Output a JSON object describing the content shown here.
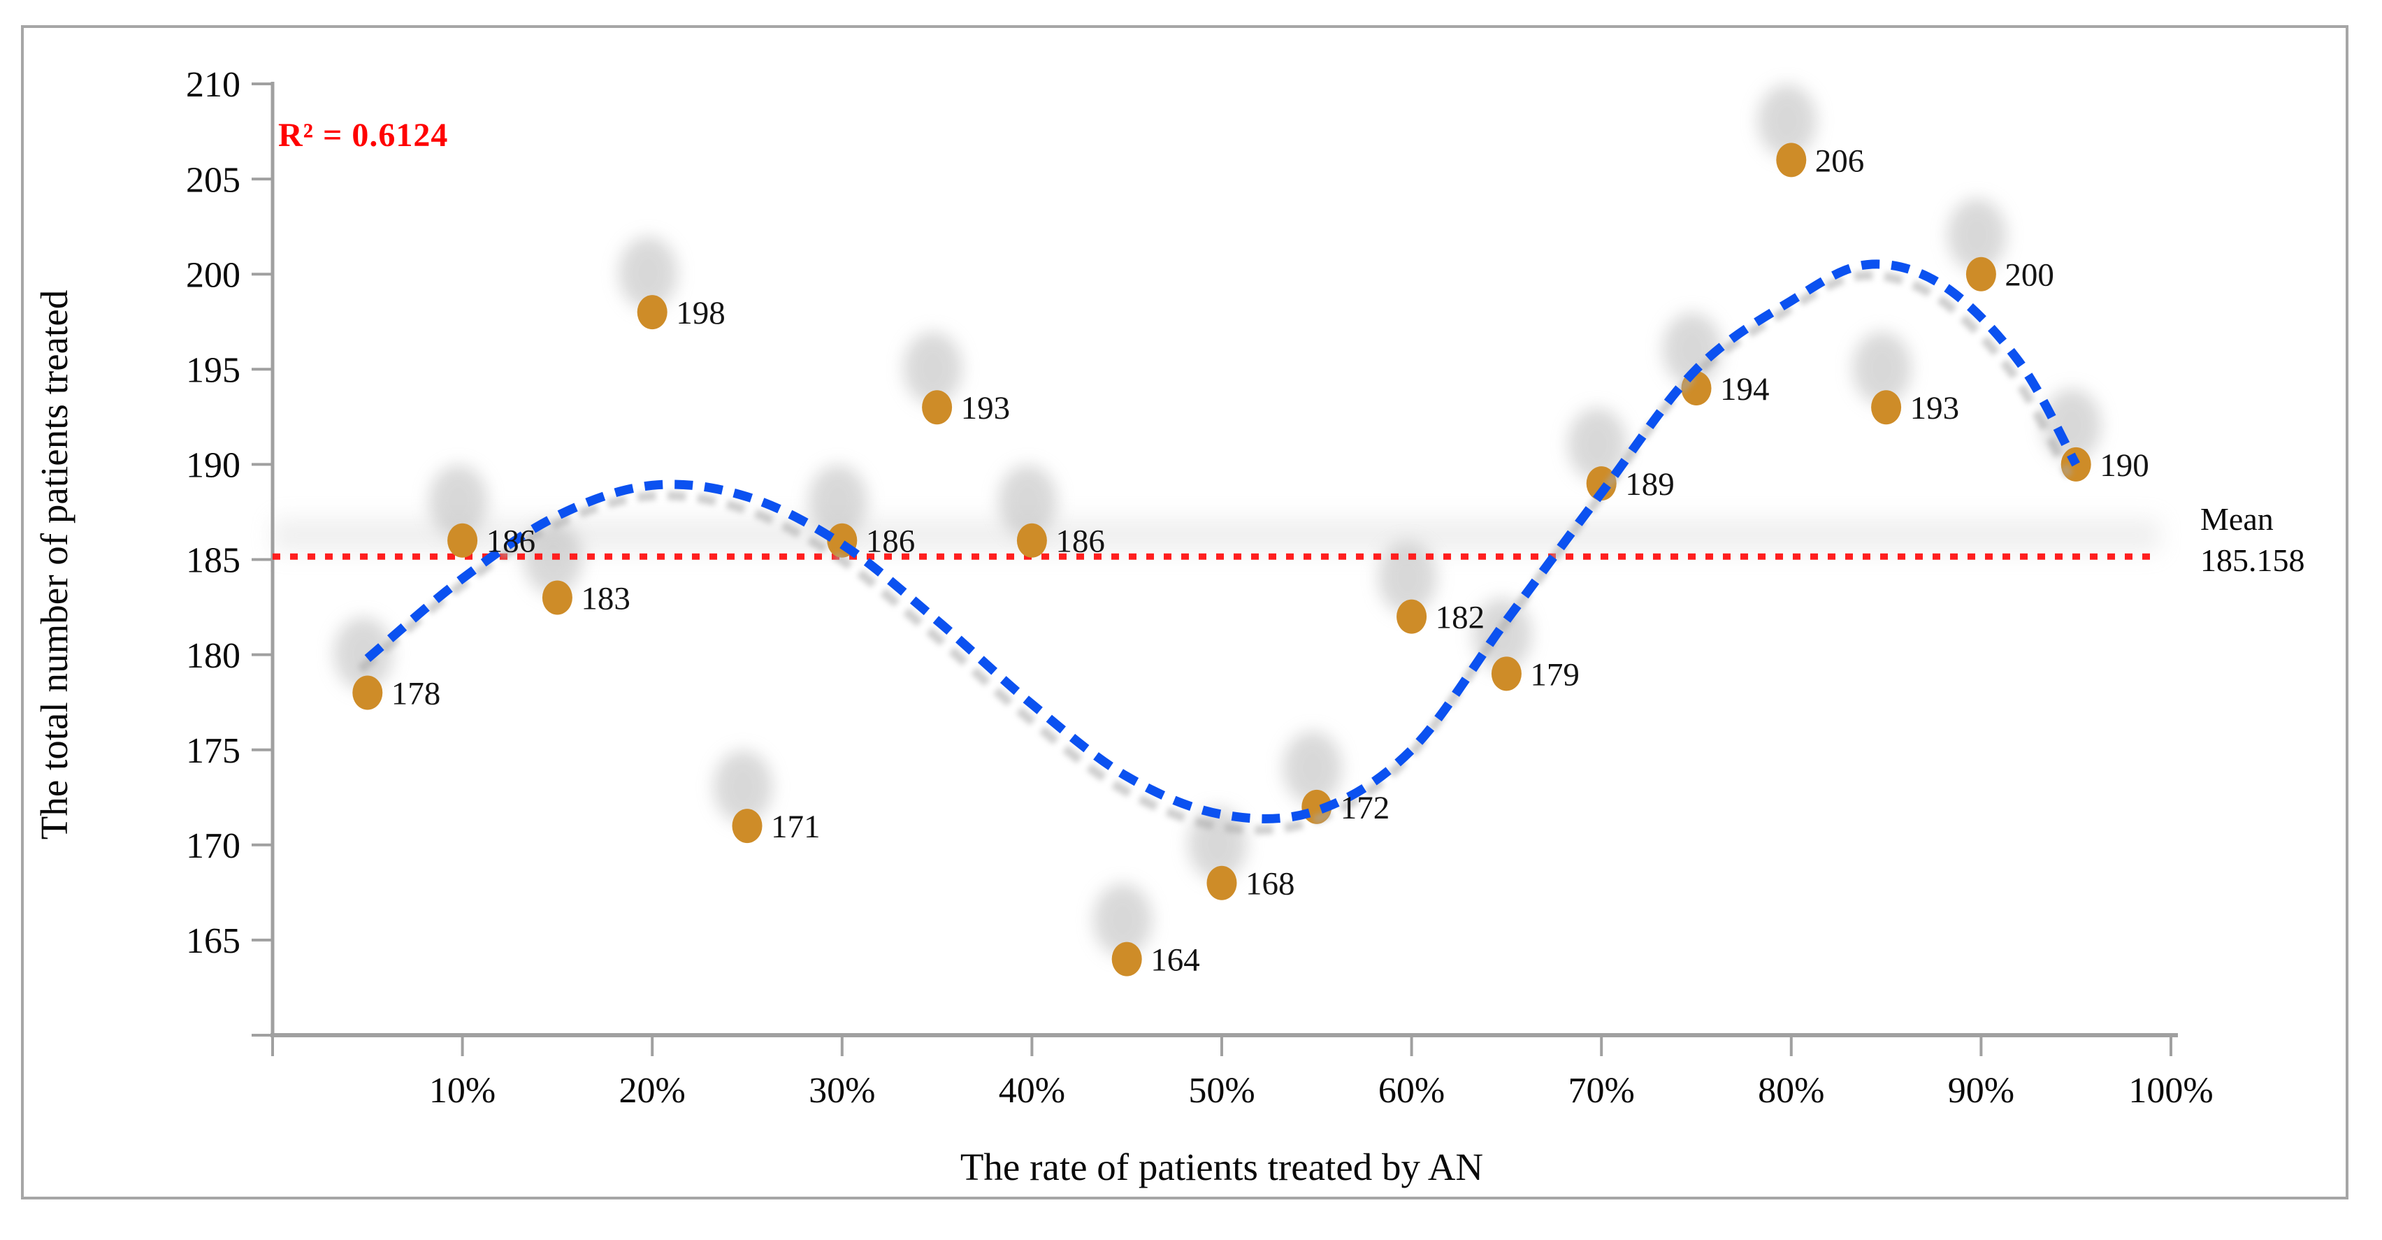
{
  "chart_data": {
    "type": "scatter",
    "title": "",
    "xlabel": "The rate of patients treated by AN",
    "ylabel": "The total number of patients treated",
    "r2_label": "R² = 0.6124",
    "mean": {
      "value": 185.158,
      "line1": "Mean",
      "line2": "185.158"
    },
    "x_range": [
      0,
      100
    ],
    "y_range": [
      160,
      210
    ],
    "legend": "none",
    "grid": "off",
    "x_ticks": [
      {
        "p": 0,
        "label": ""
      },
      {
        "p": 10,
        "label": "10%"
      },
      {
        "p": 20,
        "label": "20%"
      },
      {
        "p": 30,
        "label": "30%"
      },
      {
        "p": 40,
        "label": "40%"
      },
      {
        "p": 50,
        "label": "50%"
      },
      {
        "p": 60,
        "label": "60%"
      },
      {
        "p": 70,
        "label": "70%"
      },
      {
        "p": 80,
        "label": "80%"
      },
      {
        "p": 90,
        "label": "90%"
      },
      {
        "p": 100,
        "label": "100%"
      }
    ],
    "y_ticks": [
      {
        "v": 160,
        "label": ""
      },
      {
        "v": 165,
        "label": "165"
      },
      {
        "v": 170,
        "label": "170"
      },
      {
        "v": 175,
        "label": "175"
      },
      {
        "v": 180,
        "label": "180"
      },
      {
        "v": 185,
        "label": "185"
      },
      {
        "v": 190,
        "label": "190"
      },
      {
        "v": 195,
        "label": "195"
      },
      {
        "v": 200,
        "label": "200"
      },
      {
        "v": 205,
        "label": "205"
      },
      {
        "v": 210,
        "label": "210"
      }
    ],
    "points": [
      {
        "x": 5,
        "y": 178,
        "label": "178"
      },
      {
        "x": 10,
        "y": 186,
        "label": "186"
      },
      {
        "x": 15,
        "y": 183,
        "label": "183"
      },
      {
        "x": 20,
        "y": 198,
        "label": "198"
      },
      {
        "x": 25,
        "y": 171,
        "label": "171"
      },
      {
        "x": 30,
        "y": 186,
        "label": "186"
      },
      {
        "x": 35,
        "y": 193,
        "label": "193"
      },
      {
        "x": 40,
        "y": 186,
        "label": "186"
      },
      {
        "x": 45,
        "y": 164,
        "label": "164"
      },
      {
        "x": 50,
        "y": 168,
        "label": "168"
      },
      {
        "x": 55,
        "y": 172,
        "label": "172"
      },
      {
        "x": 60,
        "y": 182,
        "label": "182"
      },
      {
        "x": 65,
        "y": 179,
        "label": "179"
      },
      {
        "x": 70,
        "y": 189,
        "label": "189"
      },
      {
        "x": 75,
        "y": 194,
        "label": "194"
      },
      {
        "x": 80,
        "y": 206,
        "label": "206"
      },
      {
        "x": 85,
        "y": 193,
        "label": "193"
      },
      {
        "x": 90,
        "y": 200,
        "label": "200"
      },
      {
        "x": 95,
        "y": 190,
        "label": "190"
      }
    ],
    "trend": {
      "style": "dashed",
      "control_points": [
        [
          5,
          179.8
        ],
        [
          10,
          184.0
        ],
        [
          15,
          187.3
        ],
        [
          20,
          188.9
        ],
        [
          25,
          188.3
        ],
        [
          30,
          185.8
        ],
        [
          35,
          181.8
        ],
        [
          40,
          177.4
        ],
        [
          45,
          173.6
        ],
        [
          50,
          171.6
        ],
        [
          55,
          171.8
        ],
        [
          60,
          175.0
        ],
        [
          65,
          181.8
        ],
        [
          70,
          188.5
        ],
        [
          75,
          195.0
        ],
        [
          80,
          198.6
        ],
        [
          84,
          200.5
        ],
        [
          88,
          199.4
        ],
        [
          92,
          195.4
        ],
        [
          95,
          190.0
        ]
      ]
    },
    "colors": {
      "marker": "#CE8C28",
      "trend": "#0B51F0",
      "mean_line": "#FF1E1E",
      "r2_text": "#FF0000",
      "axis": "#A0A0A0",
      "label_text": "#141414",
      "shadow": "#B3B3B3"
    }
  }
}
